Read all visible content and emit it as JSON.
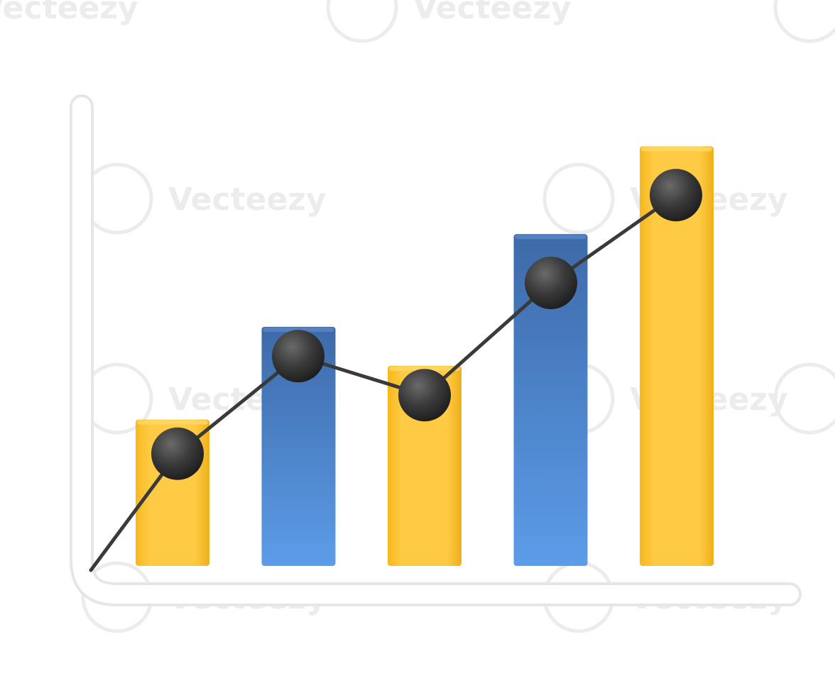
{
  "watermark": {
    "text": "Vecteezy",
    "logo_icon": "vecteezy-v-logo-icon"
  },
  "chart_data": {
    "type": "bar",
    "title": "",
    "xlabel": "",
    "ylabel": "",
    "categories": [
      "",
      "",
      "",
      "",
      ""
    ],
    "ylim": [
      0,
      10
    ],
    "grid": false,
    "legend": "none",
    "bar_colors": [
      "#ffc83a",
      "#4f8ad8",
      "#ffc83a",
      "#4a7bc4",
      "#ffc83a"
    ],
    "values": [
      3.0,
      4.9,
      4.1,
      6.8,
      8.6
    ],
    "line": {
      "type": "line",
      "color": "#3a3a3a",
      "marker_color": "#3c3c3c",
      "start_value": 0,
      "values": [
        2.3,
        4.3,
        3.5,
        5.8,
        7.6
      ]
    }
  }
}
